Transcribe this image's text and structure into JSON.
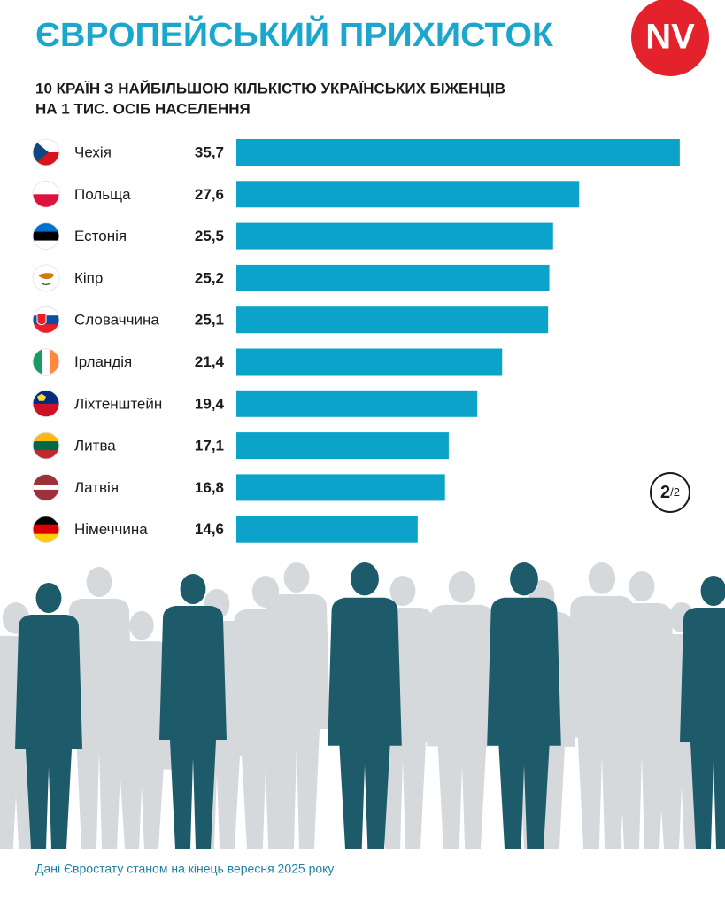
{
  "header": {
    "title": "ЄВРОПЕЙСЬКИЙ ПРИХИСТОК",
    "logo": "NV"
  },
  "chart_data": {
    "type": "bar",
    "title": [
      "10 КРАЇН З НАЙБІЛЬШОЮ КІЛЬКІСТЮ УКРАЇНСЬКИХ БІЖЕНЦІВ",
      "НА 1 ТИС. ОСІБ НАСЕЛЕННЯ"
    ],
    "categories": [
      "Чехія",
      "Польща",
      "Естонія",
      "Кіпр",
      "Словаччина",
      "Ірландія",
      "Ліхтенштейн",
      "Литва",
      "Латвія",
      "Німеччина"
    ],
    "values": [
      35.7,
      27.6,
      25.5,
      25.2,
      25.1,
      21.4,
      19.4,
      17.1,
      16.8,
      14.6
    ],
    "value_labels": [
      "35,7",
      "27,6",
      "25,5",
      "25,2",
      "25,1",
      "21,4",
      "19,4",
      "17,1",
      "16,8",
      "14,6"
    ],
    "color": "#0ba3c9"
  },
  "page_indicator": {
    "current": "2",
    "total": "/2"
  },
  "footer": {
    "source": "Дані Євростату станом на кінець вересня 2025 року"
  }
}
